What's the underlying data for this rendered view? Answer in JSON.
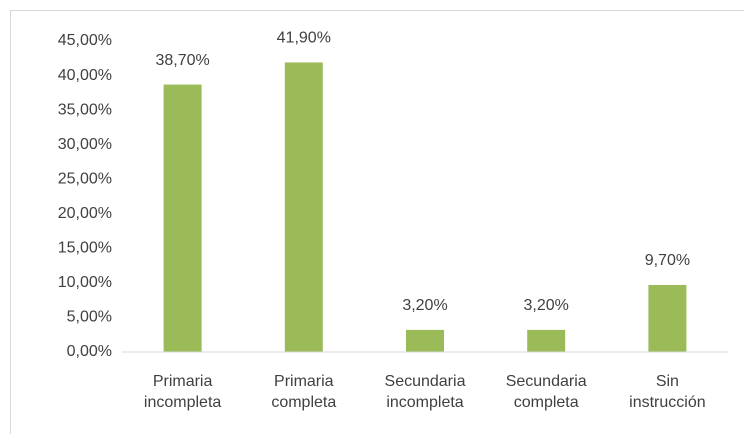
{
  "chart_data": {
    "type": "bar",
    "categories": [
      "Primaria incompleta",
      "Primaria completa",
      "Secundaria incompleta",
      "Secundaria completa",
      "Sin instrucción"
    ],
    "values": [
      38.7,
      41.9,
      3.2,
      3.2,
      9.7
    ],
    "value_labels": [
      "38,70%",
      "41,90%",
      "3,20%",
      "3,20%",
      "9,70%"
    ],
    "color": "#9bbb59",
    "ylim": [
      0,
      45
    ],
    "yticks": [
      {
        "value": 0,
        "label": "0,00%"
      },
      {
        "value": 5,
        "label": "5,00%"
      },
      {
        "value": 10,
        "label": "10,00%"
      },
      {
        "value": 15,
        "label": "15,00%"
      },
      {
        "value": 20,
        "label": "20,00%"
      },
      {
        "value": 25,
        "label": "25,00%"
      },
      {
        "value": 30,
        "label": "30,00%"
      },
      {
        "value": 35,
        "label": "35,00%"
      },
      {
        "value": 40,
        "label": "40,00%"
      },
      {
        "value": 45,
        "label": "45,00%"
      }
    ],
    "grid": false
  }
}
